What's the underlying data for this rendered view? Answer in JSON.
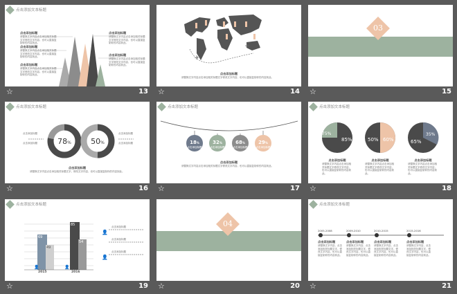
{
  "slide_title": "点击添加文本标题",
  "small_title": "点击添加标题",
  "body_short": "点击添加标题",
  "body_text": "请替换文字内容点击添加相关标题文字修改文字内容，也可以直接复制你的内容到此。",
  "body_text_long": "请替换文字内容，点击添加相关标题文字，修改文字内容，也可以直接复制你的内容到此。",
  "center_heading": "点击添加标题",
  "para_a": "请替换文字内容点击添加相关标题文字修改文字内容，也可以直接复制你的内容到此。",
  "para_b": "请替换文字内容点击添加相关标题文字，修改文字内容，也可以直接复制你的内容到此。",
  "section_03": "03",
  "section_04": "04",
  "slide16": {
    "pct1": "78",
    "pct2": "50",
    "pct_sign": "%"
  },
  "slide17": {
    "tags": [
      "18",
      "32",
      "68",
      "29"
    ],
    "pct_sign": "%"
  },
  "slide18": {
    "pies": [
      {
        "a": "75",
        "b": "85"
      },
      {
        "a": "50",
        "b": "60"
      },
      {
        "a": "65",
        "b": "35"
      }
    ],
    "pct_sign": "%"
  },
  "slide19": {
    "years": [
      "2015",
      "2016"
    ],
    "bar_labels": [
      "69",
      "49",
      "54",
      "85",
      "54"
    ]
  },
  "slide21": {
    "years": [
      "2005-2008",
      "2009-2010",
      "2010-2015",
      "2015-2016"
    ]
  },
  "slide_numbers": [
    "13",
    "14",
    "15",
    "16",
    "17",
    "18",
    "19",
    "20",
    "21"
  ],
  "footer_star": "☆",
  "colors": {
    "green": "#9db29f",
    "peach": "#eec4a8",
    "dark": "#4a4a4a",
    "gray": "#8c8c8c",
    "slate": "#6f7a8c"
  }
}
